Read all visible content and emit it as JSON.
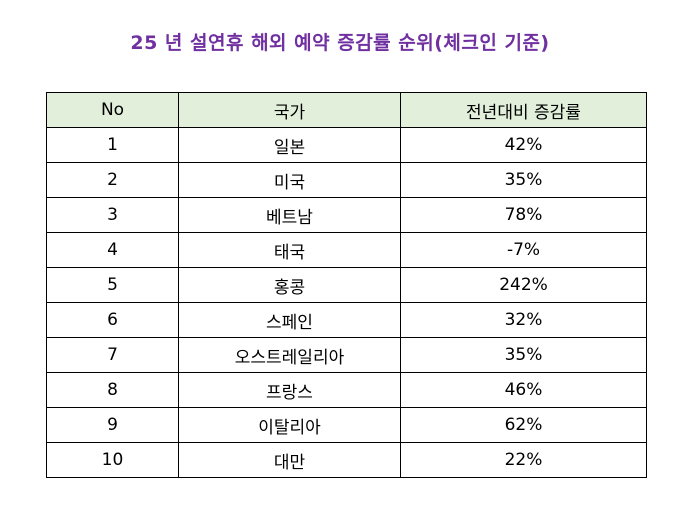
{
  "title": "25 년  설연휴  해외  예약  증감률  순위(체크인  기준)",
  "colors": {
    "title": "#7030A0",
    "header_bg": "#E2EFDA",
    "border": "#000000"
  },
  "table": {
    "headers": {
      "no": "No",
      "country": "국가",
      "rate": "전년대비  증감률"
    },
    "rows": [
      {
        "no": "1",
        "country": "일본",
        "rate": "42%"
      },
      {
        "no": "2",
        "country": "미국",
        "rate": "35%"
      },
      {
        "no": "3",
        "country": "베트남",
        "rate": "78%"
      },
      {
        "no": "4",
        "country": "태국",
        "rate": "-7%"
      },
      {
        "no": "5",
        "country": "홍콩",
        "rate": "242%"
      },
      {
        "no": "6",
        "country": "스페인",
        "rate": "32%"
      },
      {
        "no": "7",
        "country": "오스트레일리아",
        "rate": "35%"
      },
      {
        "no": "8",
        "country": "프랑스",
        "rate": "46%"
      },
      {
        "no": "9",
        "country": "이탈리아",
        "rate": "62%"
      },
      {
        "no": "10",
        "country": "대만",
        "rate": "22%"
      }
    ]
  }
}
